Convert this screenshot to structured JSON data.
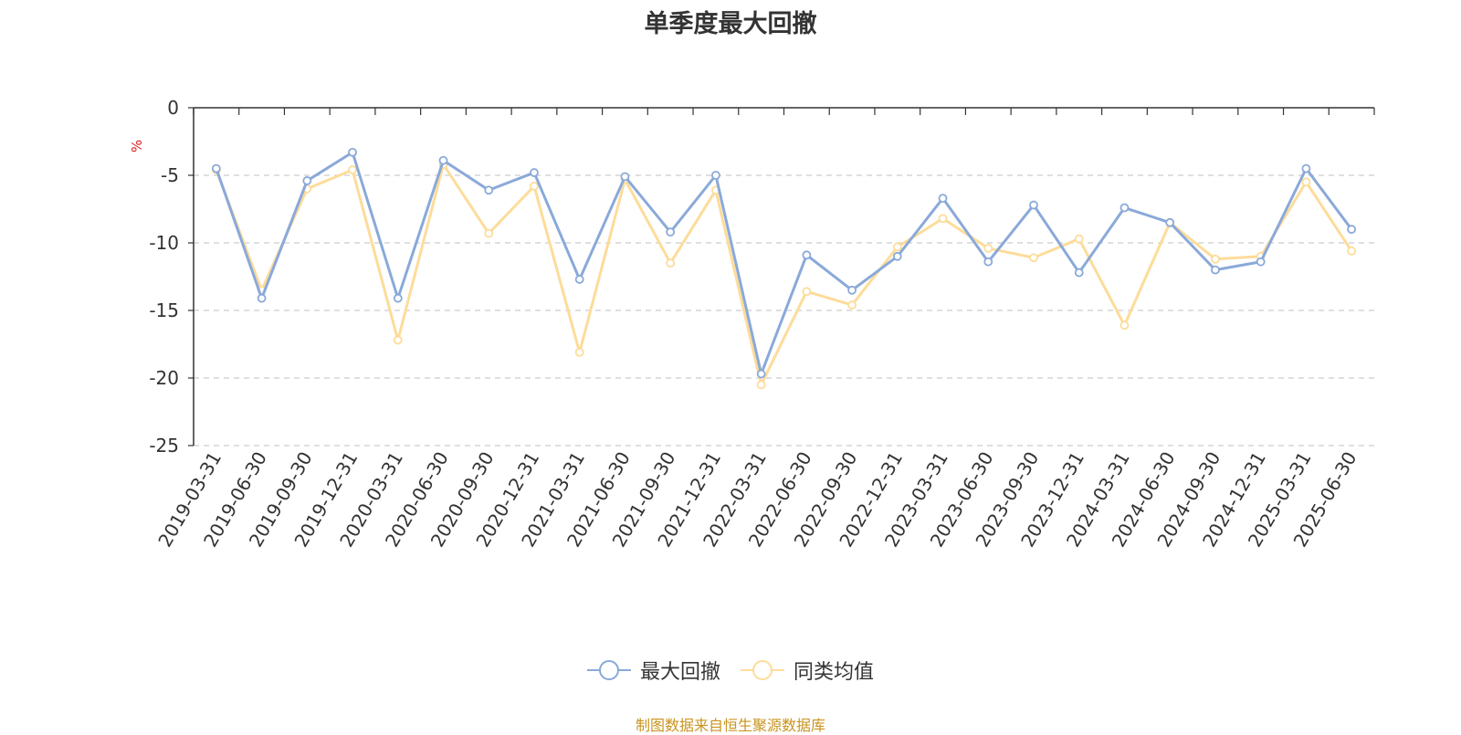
{
  "chart_data": {
    "type": "line",
    "title": "单季度最大回撤",
    "ylabel": "%",
    "ylim": [
      -25,
      0
    ],
    "yticks": [
      0,
      -5,
      -10,
      -15,
      -20,
      -25
    ],
    "grid": true,
    "legend_position": "bottom",
    "categories": [
      "2019-03-31",
      "2019-06-30",
      "2019-09-30",
      "2019-12-31",
      "2020-03-31",
      "2020-06-30",
      "2020-09-30",
      "2020-12-31",
      "2021-03-31",
      "2021-06-30",
      "2021-09-30",
      "2021-12-31",
      "2022-03-31",
      "2022-06-30",
      "2022-09-30",
      "2022-12-31",
      "2023-03-31",
      "2023-06-30",
      "2023-09-30",
      "2023-12-31",
      "2024-03-31",
      "2024-06-30",
      "2024-09-30",
      "2024-12-31",
      "2025-03-31",
      "2025-06-30"
    ],
    "series": [
      {
        "name": "最大回撤",
        "color": "#8aa9d9",
        "values": [
          -4.5,
          -14.1,
          -5.4,
          -3.3,
          -14.1,
          -3.9,
          -6.1,
          -4.8,
          -12.7,
          -5.1,
          -9.2,
          -5.0,
          -19.7,
          -10.9,
          -13.5,
          -11.0,
          -6.7,
          -11.4,
          -7.2,
          -12.2,
          -7.4,
          -8.5,
          -12.0,
          -11.4,
          -4.5,
          -9.0
        ]
      },
      {
        "name": "同类均值",
        "color": "#fddc9a",
        "values": [
          -4.6,
          -13.5,
          -6.0,
          -4.6,
          -17.2,
          -4.2,
          -9.3,
          -5.8,
          -18.1,
          -5.3,
          -11.5,
          -6.1,
          -20.5,
          -13.6,
          -14.6,
          -10.3,
          -8.2,
          -10.4,
          -11.1,
          -9.7,
          -16.1,
          -8.5,
          -11.2,
          -11.0,
          -5.5,
          -10.6
        ]
      }
    ]
  },
  "source_note": "制图数据来自恒生聚源数据库"
}
